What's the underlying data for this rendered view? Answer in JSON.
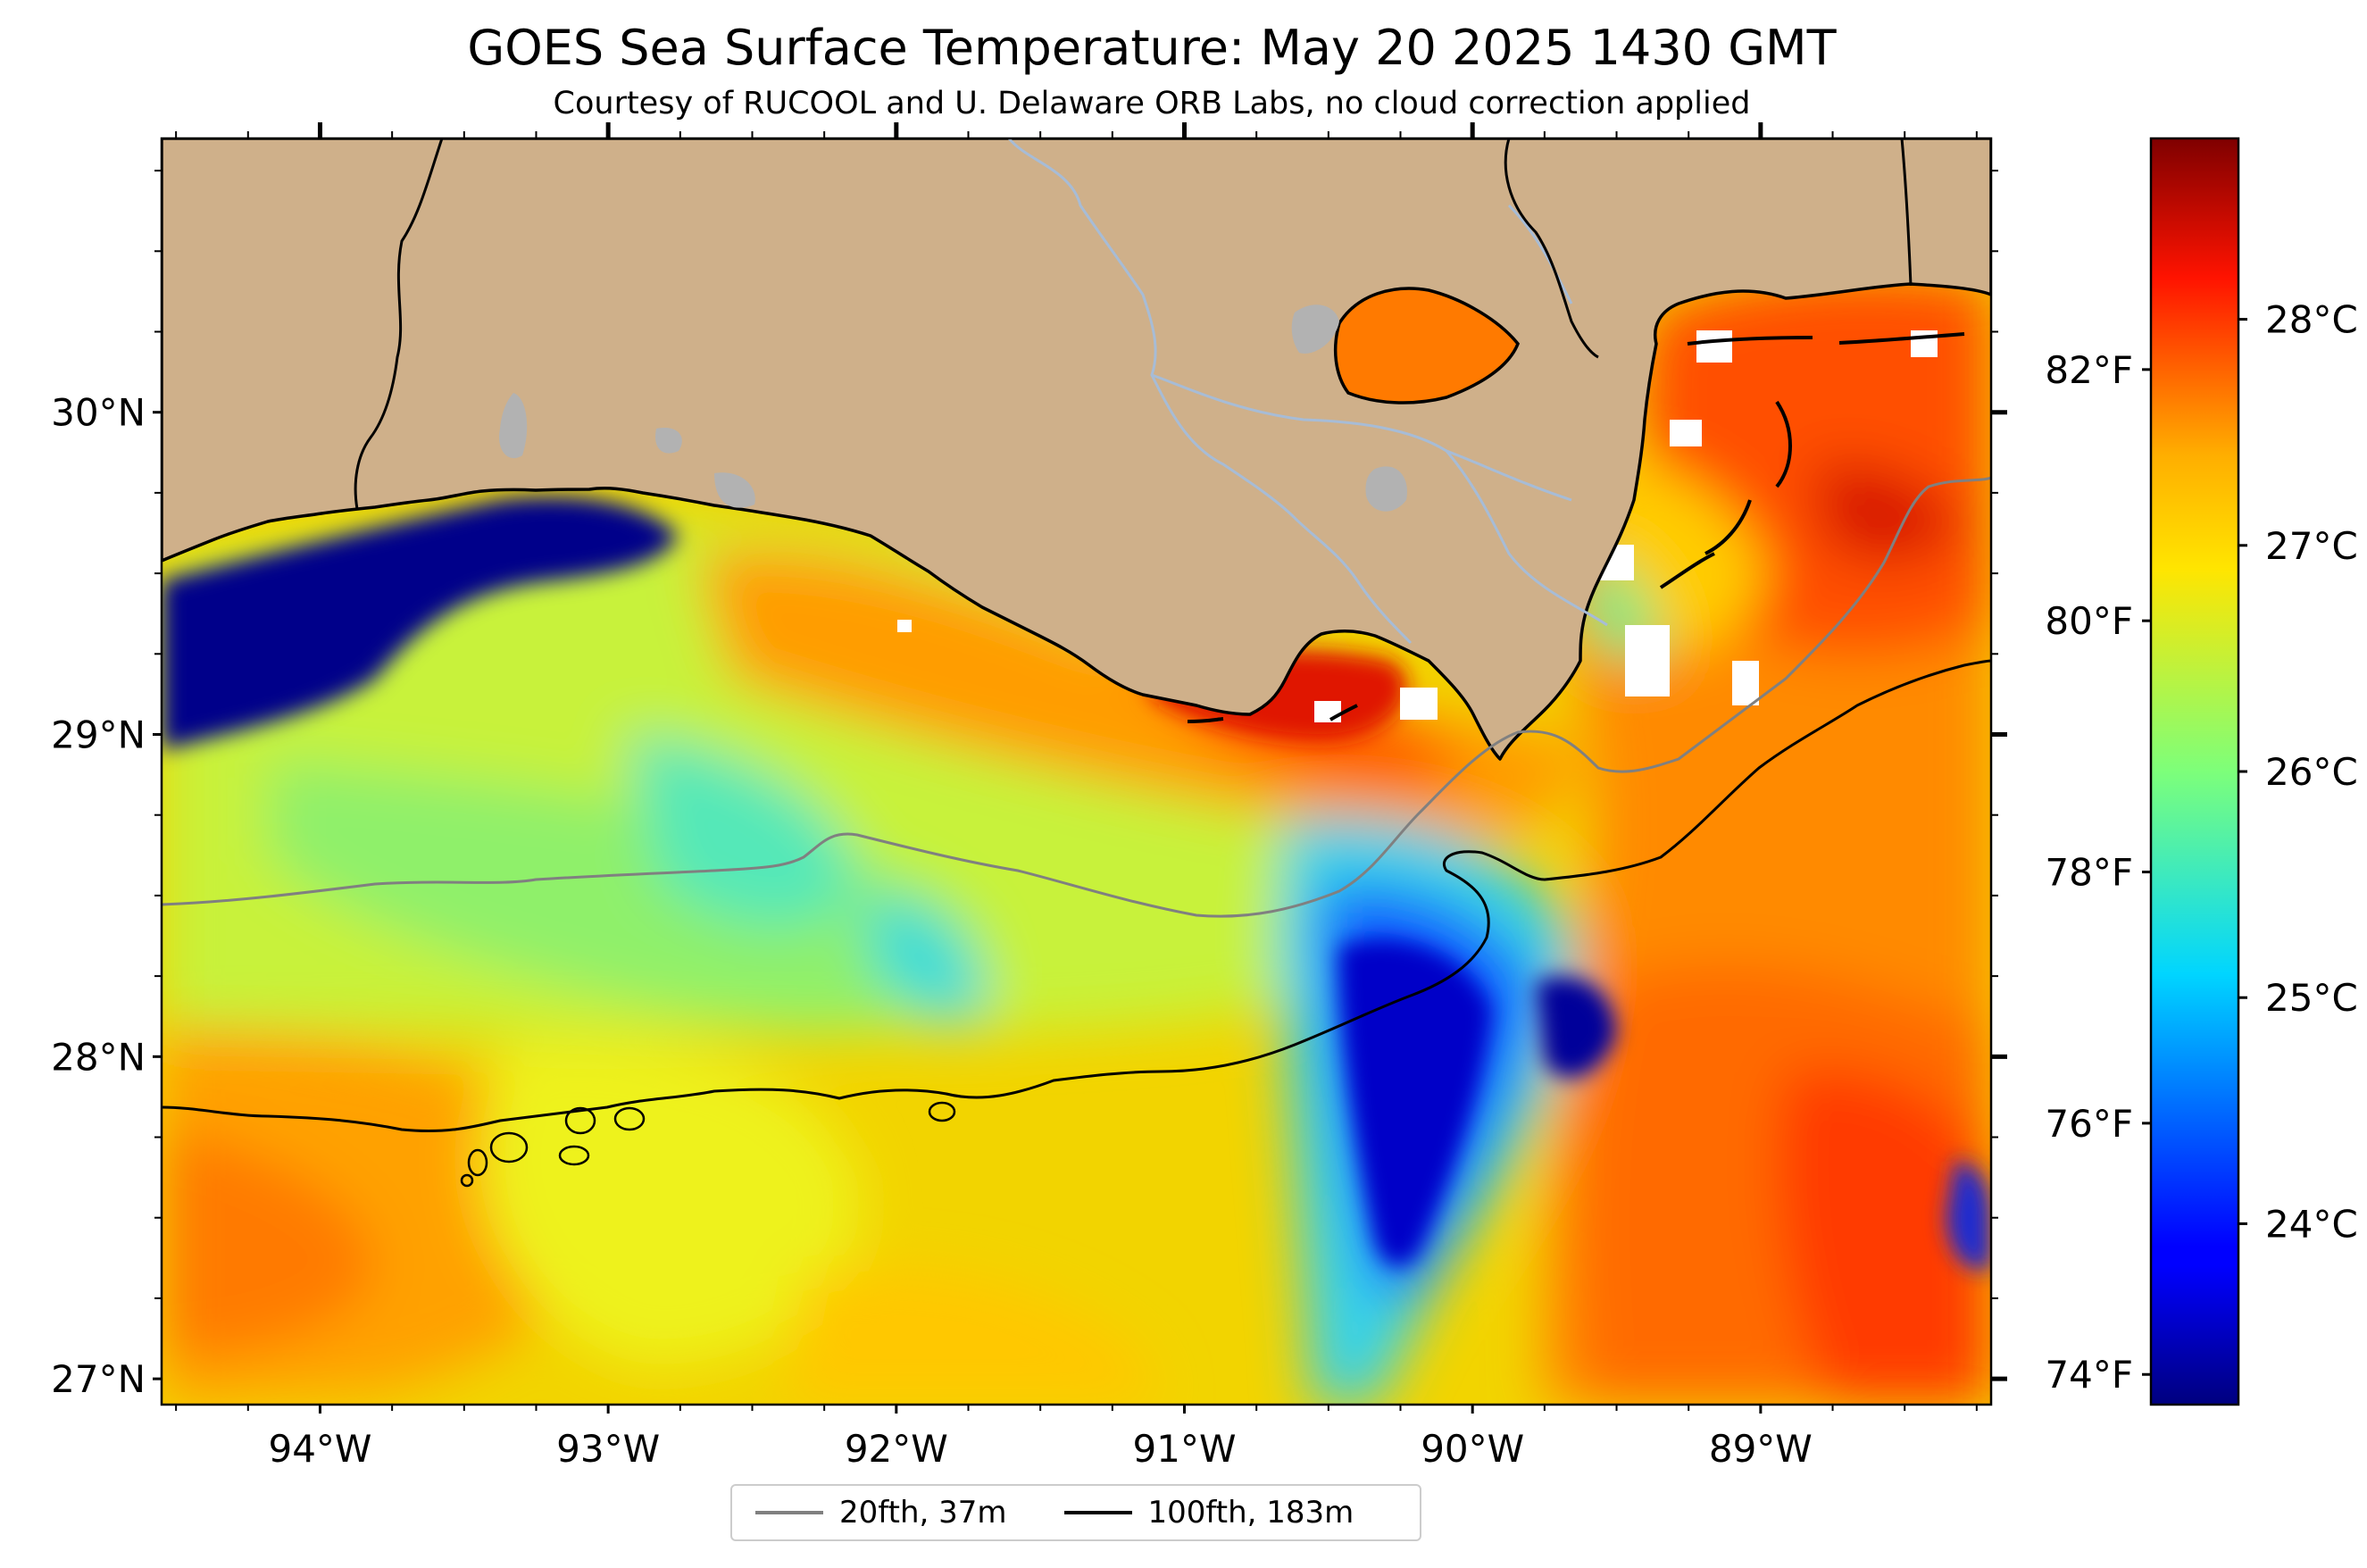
{
  "title": "GOES Sea Surface Temperature: May 20 2025 1430 GMT",
  "subtitle": "Courtesy of RUCOOL and U. Delaware ORB Labs, no cloud correction applied",
  "map": {
    "extent": {
      "lon_min": -94.55,
      "lon_max": -88.2,
      "lat_min": 26.92,
      "lat_max": 30.85
    },
    "lat_ticks": [
      {
        "value": 30,
        "label": "30°N"
      },
      {
        "value": 29,
        "label": "29°N"
      },
      {
        "value": 28,
        "label": "28°N"
      },
      {
        "value": 27,
        "label": "27°N"
      }
    ],
    "lon_ticks": [
      {
        "value": -94,
        "label": "94°W"
      },
      {
        "value": -93,
        "label": "93°W"
      },
      {
        "value": -92,
        "label": "92°W"
      },
      {
        "value": -91,
        "label": "91°W"
      },
      {
        "value": -90,
        "label": "90°W"
      },
      {
        "value": -89,
        "label": "89°W"
      }
    ],
    "colors": {
      "land": "#cfb08a",
      "coastline": "#000000",
      "rivers": "#a7bcd6",
      "lakes": "#b2b2b2",
      "no_data": "#ffffff"
    }
  },
  "colorbar": {
    "colormap": "jet",
    "range_c": [
      23.2,
      28.8
    ],
    "celsius_ticks": [
      {
        "value": 28,
        "label": "28°C"
      },
      {
        "value": 27,
        "label": "27°C"
      },
      {
        "value": 26,
        "label": "26°C"
      },
      {
        "value": 25,
        "label": "25°C"
      },
      {
        "value": 24,
        "label": "24°C"
      }
    ],
    "fahrenheit_ticks": [
      {
        "value": 82,
        "label": "82°F"
      },
      {
        "value": 80,
        "label": "80°F"
      },
      {
        "value": 78,
        "label": "78°F"
      },
      {
        "value": 76,
        "label": "76°F"
      },
      {
        "value": 74,
        "label": "74°F"
      }
    ]
  },
  "legend": {
    "items": [
      {
        "label": "20fth, 37m",
        "color": "#808080"
      },
      {
        "label": "100fth, 183m",
        "color": "#000000"
      }
    ]
  }
}
